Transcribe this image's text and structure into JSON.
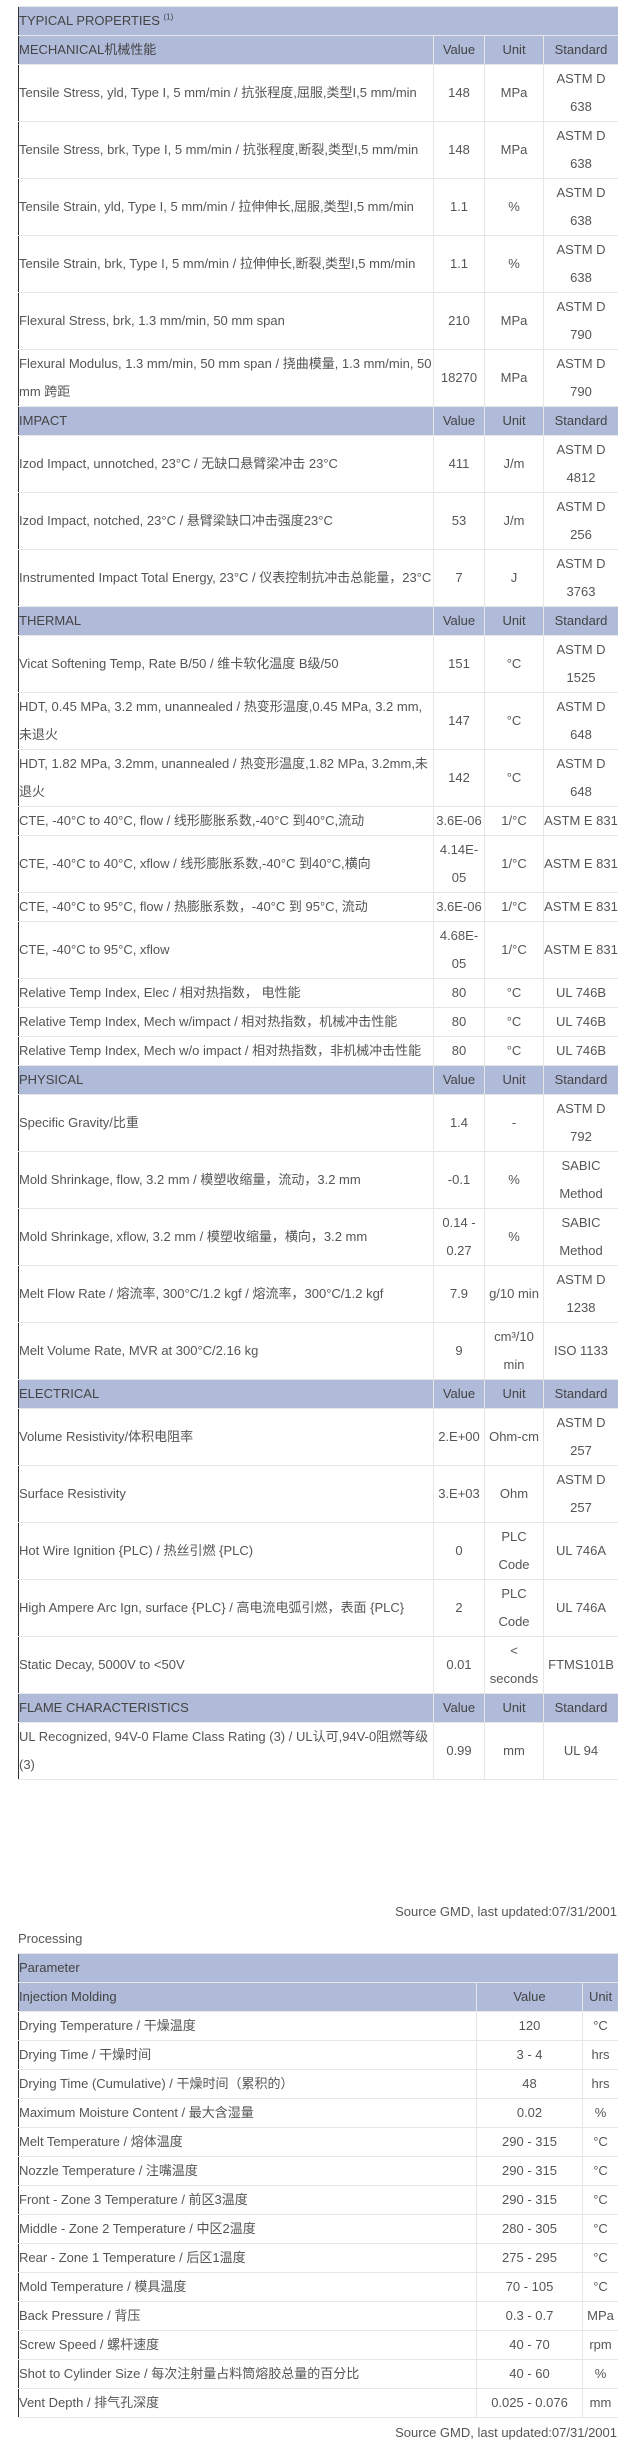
{
  "typical_properties": {
    "title": "TYPICAL PROPERTIES",
    "footnote": "(1)",
    "sections": [
      {
        "name": "MECHANICAL机械性能",
        "value_header": "Value",
        "unit_header": "Unit",
        "standard_header": "Standard",
        "rows": [
          {
            "property": "Tensile Stress, yld, Type I, 5 mm/min / 抗张程度,屈服,类型I,5 mm/min",
            "value": "148",
            "unit": "MPa",
            "standard": "ASTM D 638"
          },
          {
            "property": "Tensile Stress, brk, Type I, 5 mm/min / 抗张程度,断裂,类型I,5 mm/min",
            "value": "148",
            "unit": "MPa",
            "standard": "ASTM D 638"
          },
          {
            "property": "Tensile Strain, yld, Type I, 5 mm/min / 拉伸伸长,屈服,类型I,5 mm/min",
            "value": "1.1",
            "unit": "%",
            "standard": "ASTM D 638"
          },
          {
            "property": "Tensile Strain, brk, Type I, 5 mm/min / 拉伸伸长,断裂,类型I,5 mm/min",
            "value": "1.1",
            "unit": "%",
            "standard": "ASTM D 638"
          },
          {
            "property": "Flexural Stress, brk, 1.3 mm/min, 50 mm span",
            "value": "210",
            "unit": "MPa",
            "standard": "ASTM D 790"
          },
          {
            "property": "Flexural Modulus, 1.3 mm/min, 50 mm span / 挠曲模量, 1.3 mm/min, 50 mm 跨距",
            "value": "18270",
            "unit": "MPa",
            "standard": "ASTM D 790"
          }
        ]
      },
      {
        "name": "IMPACT",
        "value_header": "Value",
        "unit_header": "Unit",
        "standard_header": "Standard",
        "rows": [
          {
            "property": "Izod Impact, unnotched, 23°C / 无缺口悬臂梁冲击 23°C",
            "value": "411",
            "unit": "J/m",
            "standard": "ASTM D 4812"
          },
          {
            "property": "Izod Impact, notched, 23°C / 悬臂梁缺口冲击强度23°C",
            "value": "53",
            "unit": "J/m",
            "standard": "ASTM D 256"
          },
          {
            "property": "Instrumented Impact Total Energy, 23°C / 仪表控制抗冲击总能量，23°C",
            "value": "7",
            "unit": "J",
            "standard": "ASTM D 3763"
          }
        ]
      },
      {
        "name": "THERMAL",
        "value_header": "Value",
        "unit_header": "Unit",
        "standard_header": "Standard",
        "rows": [
          {
            "property": "Vicat Softening Temp, Rate B/50 / 维卡软化温度 B级/50",
            "value": "151",
            "unit": "°C",
            "standard": "ASTM D 1525"
          },
          {
            "property": "HDT, 0.45 MPa, 3.2 mm, unannealed / 热变形温度,0.45 MPa, 3.2 mm,未退火",
            "value": "147",
            "unit": "°C",
            "standard": "ASTM D 648"
          },
          {
            "property": "HDT, 1.82 MPa, 3.2mm, unannealed / 热变形温度,1.82 MPa, 3.2mm,未退火",
            "value": "142",
            "unit": "°C",
            "standard": "ASTM D 648"
          },
          {
            "property": "CTE, -40°C to 40°C, flow / 线形膨胀系数,-40°C 到40°C,流动",
            "value": "3.6E-06",
            "unit": "1/°C",
            "standard": "ASTM E 831"
          },
          {
            "property": "CTE, -40°C to 40°C, xflow / 线形膨胀系数,-40°C 到40°C,横向",
            "value": "4.14E-05",
            "unit": "1/°C",
            "standard": "ASTM E 831"
          },
          {
            "property": "CTE, -40°C to 95°C, flow / 热膨胀系数，-40°C 到 95°C, 流动",
            "value": "3.6E-06",
            "unit": "1/°C",
            "standard": "ASTM E 831"
          },
          {
            "property": "CTE, -40°C to 95°C, xflow",
            "value": "4.68E-05",
            "unit": "1/°C",
            "standard": "ASTM E 831"
          },
          {
            "property": "Relative Temp Index, Elec / 相对热指数， 电性能",
            "value": "80",
            "unit": "°C",
            "standard": "UL 746B"
          },
          {
            "property": "Relative Temp Index, Mech w/impact / 相对热指数，机械冲击性能",
            "value": "80",
            "unit": "°C",
            "standard": "UL 746B"
          },
          {
            "property": "Relative Temp Index, Mech w/o impact / 相对热指数，非机械冲击性能",
            "value": "80",
            "unit": "°C",
            "standard": "UL 746B"
          }
        ]
      },
      {
        "name": "PHYSICAL",
        "value_header": "Value",
        "unit_header": "Unit",
        "standard_header": "Standard",
        "rows": [
          {
            "property": "Specific Gravity/比重",
            "value": "1.4",
            "unit": "-",
            "standard": "ASTM D 792"
          },
          {
            "property": "Mold Shrinkage, flow, 3.2 mm / 模塑收缩量，流动，3.2 mm",
            "value": "-0.1",
            "unit": "%",
            "standard": "SABIC Method"
          },
          {
            "property": "Mold Shrinkage, xflow, 3.2 mm / 模塑收缩量，横向，3.2 mm",
            "value": "0.14 - 0.27",
            "unit": "%",
            "standard": "SABIC Method"
          },
          {
            "property": "Melt Flow Rate / 熔流率, 300°C/1.2 kgf / 熔流率，300°C/1.2 kgf",
            "value": "7.9",
            "unit": "g/10 min",
            "standard": "ASTM D 1238"
          },
          {
            "property": "Melt Volume Rate, MVR at 300°C/2.16 kg",
            "value": "9",
            "unit": "cm³/10 min",
            "standard": "ISO 1133"
          }
        ]
      },
      {
        "name": "ELECTRICAL",
        "value_header": "Value",
        "unit_header": "Unit",
        "standard_header": "Standard",
        "rows": [
          {
            "property": "Volume Resistivity/体积电阻率",
            "value": "2.E+00",
            "unit": "Ohm-cm",
            "standard": "ASTM D 257"
          },
          {
            "property": "Surface Resistivity",
            "value": "3.E+03",
            "unit": "Ohm",
            "standard": "ASTM D 257"
          },
          {
            "property": "Hot Wire Ignition {PLC) / 热丝引燃 {PLC)",
            "value": "0",
            "unit": "PLC Code",
            "standard": "UL 746A"
          },
          {
            "property": "High Ampere Arc Ign, surface {PLC} / 高电流电弧引燃，表面 {PLC}",
            "value": "2",
            "unit": "PLC Code",
            "standard": "UL 746A"
          },
          {
            "property": "Static Decay, 5000V to <50V",
            "value": "0.01",
            "unit": "< seconds",
            "standard": "FTMS101B"
          }
        ]
      },
      {
        "name": "FLAME CHARACTERISTICS",
        "value_header": "Value",
        "unit_header": "Unit",
        "standard_header": "Standard",
        "rows": [
          {
            "property": "UL Recognized, 94V-0 Flame Class Rating (3) / UL认可,94V-0阻燃等级(3)",
            "value": "0.99",
            "unit": "mm",
            "standard": "UL 94"
          }
        ]
      }
    ],
    "source": "Source GMD, last updated:07/31/2001"
  },
  "processing": {
    "label": "Processing",
    "parameter_header": "Parameter",
    "group": "Injection Molding",
    "value_header": "Value",
    "unit_header": "Unit",
    "rows": [
      {
        "parameter": "Drying Temperature / 干燥温度",
        "value": "120",
        "unit": "°C"
      },
      {
        "parameter": "Drying Time / 干燥时间",
        "value": "3 - 4",
        "unit": "hrs"
      },
      {
        "parameter": "Drying Time (Cumulative) / 干燥时间（累积的）",
        "value": "48",
        "unit": "hrs"
      },
      {
        "parameter": "Maximum Moisture Content / 最大含湿量",
        "value": "0.02",
        "unit": "%"
      },
      {
        "parameter": "Melt Temperature / 熔体温度",
        "value": "290 - 315",
        "unit": "°C"
      },
      {
        "parameter": "Nozzle Temperature / 注嘴温度",
        "value": "290 - 315",
        "unit": "°C"
      },
      {
        "parameter": "Front - Zone 3 Temperature / 前区3温度",
        "value": "290 - 315",
        "unit": "°C"
      },
      {
        "parameter": "Middle - Zone 2 Temperature / 中区2温度",
        "value": "280 - 305",
        "unit": "°C"
      },
      {
        "parameter": "Rear - Zone 1 Temperature / 后区1温度",
        "value": "275 - 295",
        "unit": "°C"
      },
      {
        "parameter": "Mold Temperature / 模具温度",
        "value": "70 - 105",
        "unit": "°C"
      },
      {
        "parameter": "Back Pressure / 背压",
        "value": "0.3 - 0.7",
        "unit": "MPa"
      },
      {
        "parameter": "Screw Speed / 螺杆速度",
        "value": "40 - 70",
        "unit": "rpm"
      },
      {
        "parameter": "Shot to Cylinder Size / 每次注射量占料筒熔胶总量的百分比",
        "value": "40 - 60",
        "unit": "%"
      },
      {
        "parameter": "Vent Depth / 排气孔深度",
        "value": "0.025 - 0.076",
        "unit": "mm"
      }
    ],
    "source": "Source GMD, last updated:07/31/2001"
  }
}
